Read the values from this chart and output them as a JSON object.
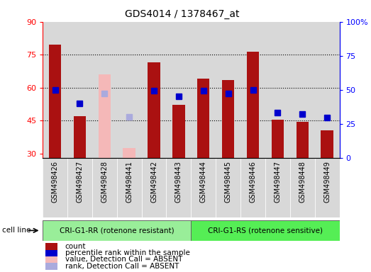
{
  "title": "GDS4014 / 1378467_at",
  "samples": [
    "GSM498426",
    "GSM498427",
    "GSM498428",
    "GSM498441",
    "GSM498442",
    "GSM498443",
    "GSM498444",
    "GSM498445",
    "GSM498446",
    "GSM498447",
    "GSM498448",
    "GSM498449"
  ],
  "count_values": [
    79.5,
    47.0,
    null,
    null,
    71.5,
    52.0,
    64.0,
    63.5,
    76.5,
    45.5,
    44.5,
    40.5
  ],
  "count_absent_values": [
    null,
    null,
    66.0,
    32.5,
    null,
    null,
    null,
    null,
    null,
    null,
    null,
    null
  ],
  "rank_values_pct": [
    50.0,
    40.0,
    null,
    null,
    49.5,
    45.0,
    49.5,
    47.5,
    50.0,
    33.0,
    32.0,
    29.5
  ],
  "rank_absent_values_pct": [
    null,
    null,
    47.5,
    30.0,
    null,
    null,
    null,
    null,
    null,
    null,
    null,
    null
  ],
  "ylim_left": [
    28,
    90
  ],
  "ylim_right": [
    0,
    100
  ],
  "yticks_left": [
    30,
    45,
    60,
    75,
    90
  ],
  "yticks_right": [
    0,
    25,
    50,
    75,
    100
  ],
  "ytick_labels_left": [
    "30",
    "45",
    "60",
    "75",
    "90"
  ],
  "ytick_labels_right": [
    "0",
    "25",
    "50",
    "75",
    "100%"
  ],
  "bar_color": "#aa1111",
  "bar_absent_color": "#f5b8b8",
  "rank_color": "#0000cc",
  "rank_absent_color": "#aaaadd",
  "group1_label": "CRI-G1-RR (rotenone resistant)",
  "group2_label": "CRI-G1-RS (rotenone sensitive)",
  "group1_color": "#99ee99",
  "group2_color": "#55ee55",
  "cell_line_label": "cell line",
  "group1_count": 6,
  "group2_count": 6,
  "legend_items": [
    {
      "label": "count",
      "color": "#aa1111"
    },
    {
      "label": "percentile rank within the sample",
      "color": "#0000cc"
    },
    {
      "label": "value, Detection Call = ABSENT",
      "color": "#f5b8b8"
    },
    {
      "label": "rank, Detection Call = ABSENT",
      "color": "#aaaadd"
    }
  ],
  "bar_width": 0.5,
  "rank_marker_size": 6,
  "col_bg_color": "#d8d8d8",
  "plot_bg_color": "#ffffff"
}
